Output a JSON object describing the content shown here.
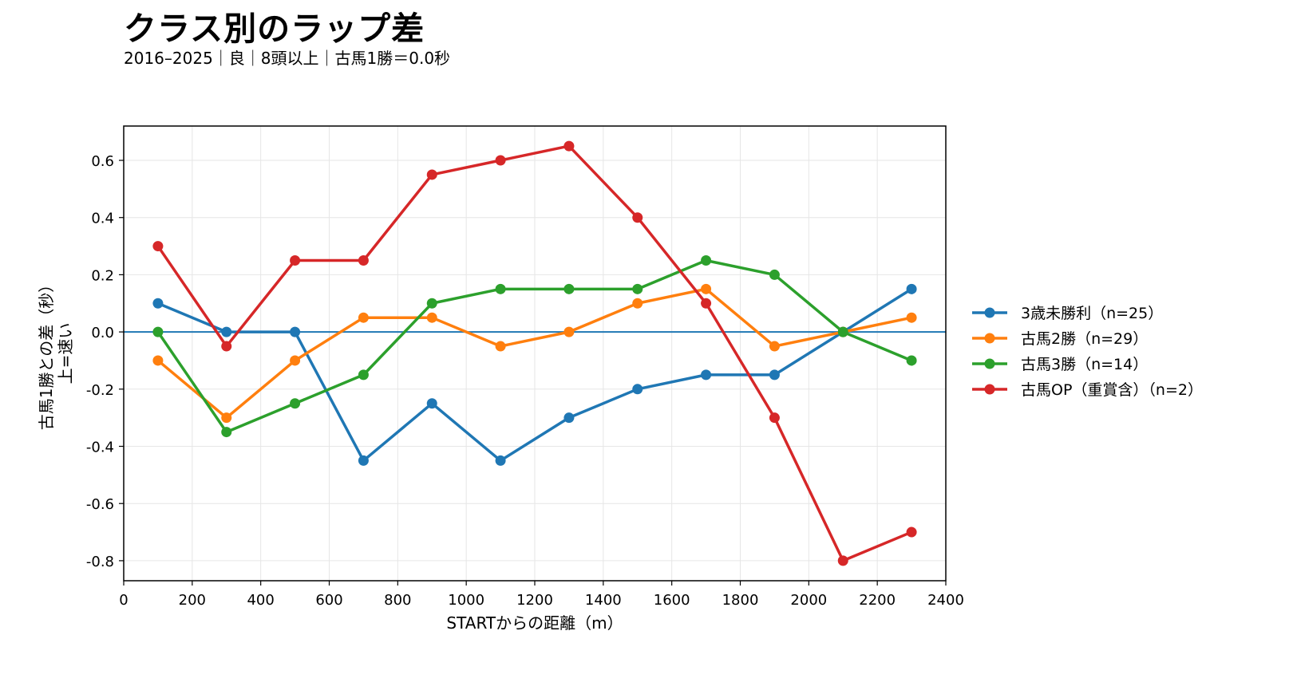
{
  "title": "クラス別のラップ差",
  "subtitle": "2016–2025｜良｜8頭以上｜古馬1勝＝0.0秒",
  "chart_data": {
    "type": "line",
    "xlabel": "STARTからの距離（m）",
    "ylabel": "古馬1勝との差（秒）",
    "ylabel_note": "上=速い",
    "xlim": [
      0,
      2400
    ],
    "ylim": [
      -0.87,
      0.72
    ],
    "xticks": [
      0,
      200,
      400,
      600,
      800,
      1000,
      1200,
      1400,
      1600,
      1800,
      2000,
      2200,
      2400
    ],
    "yticks": [
      -0.8,
      -0.6,
      -0.4,
      -0.2,
      0.0,
      0.2,
      0.4,
      0.6
    ],
    "ytick_labels": [
      "-0.8",
      "-0.6",
      "-0.4",
      "-0.2",
      "0.0",
      "0.2",
      "0.4",
      "0.6"
    ],
    "grid": true,
    "legend_position": "right",
    "reference_line": {
      "y": 0.0,
      "color": "#1f77b4"
    },
    "x": [
      100,
      300,
      500,
      700,
      900,
      1100,
      1300,
      1500,
      1700,
      1900,
      2100,
      2300
    ],
    "series": [
      {
        "name": "3歳未勝利（n=25）",
        "color": "#1f77b4",
        "values": [
          0.1,
          0.0,
          0.0,
          -0.45,
          -0.25,
          -0.45,
          -0.3,
          -0.2,
          -0.15,
          -0.15,
          0.0,
          0.15
        ]
      },
      {
        "name": "古馬2勝（n=29）",
        "color": "#ff7f0e",
        "values": [
          -0.1,
          -0.3,
          -0.1,
          0.05,
          0.05,
          -0.05,
          0.0,
          0.1,
          0.15,
          -0.05,
          0.0,
          0.05
        ]
      },
      {
        "name": "古馬3勝（n=14）",
        "color": "#2ca02c",
        "values": [
          0.0,
          -0.35,
          -0.25,
          -0.15,
          0.1,
          0.15,
          0.15,
          0.15,
          0.25,
          0.2,
          0.0,
          -0.1
        ]
      },
      {
        "name": "古馬OP（重賞含）（n=2）",
        "color": "#d62728",
        "values": [
          0.3,
          -0.05,
          0.25,
          0.25,
          0.55,
          0.6,
          0.65,
          0.4,
          0.1,
          -0.3,
          -0.8,
          -0.7
        ]
      }
    ]
  }
}
